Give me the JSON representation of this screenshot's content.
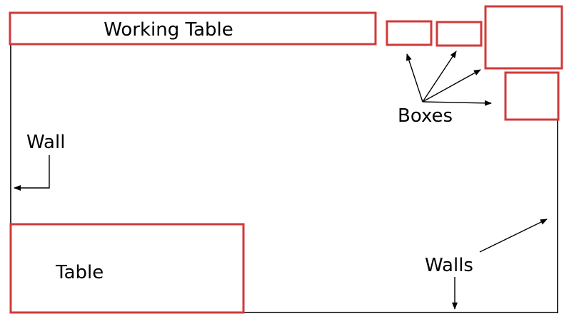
{
  "labels": {
    "working_table": "Working Table",
    "boxes": "Boxes",
    "wall": "Wall",
    "table": "Table",
    "walls": "Walls"
  },
  "colors": {
    "furniture_outline": "#d03a3a",
    "wall_line": "#000000",
    "background": "#ffffff"
  }
}
